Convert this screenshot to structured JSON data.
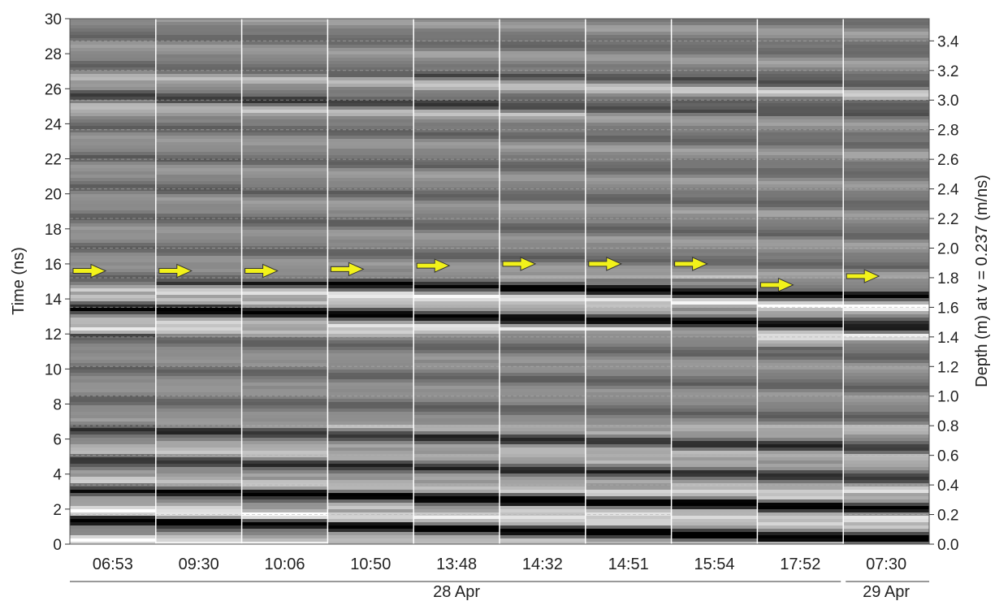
{
  "chart_data": {
    "type": "heatmap",
    "subtype": "GPR radargram time-lapse panels (grayscale amplitude)",
    "ylabel_left": "Time (ns)",
    "ylabel_right": "Depth (m) at v = 0.237 (m/ns)",
    "ylim_time_ns": [
      0,
      30
    ],
    "ylim_depth_m": [
      0.0,
      3.55
    ],
    "y_ticks_left": [
      "0",
      "2",
      "4",
      "6",
      "8",
      "10",
      "12",
      "14",
      "16",
      "18",
      "20",
      "22",
      "24",
      "26",
      "28",
      "30"
    ],
    "y_ticks_right": [
      "0.0",
      "0.2",
      "0.4",
      "0.6",
      "0.8",
      "1.0",
      "1.2",
      "1.4",
      "1.6",
      "1.8",
      "2.0",
      "2.2",
      "2.4",
      "2.6",
      "2.8",
      "3.0",
      "3.2",
      "3.4"
    ],
    "depth_gridlines_m": [
      0.0,
      0.2,
      0.4,
      0.6,
      0.8,
      1.0,
      1.2,
      1.4,
      1.6,
      1.8,
      2.0,
      2.2,
      2.4,
      2.6,
      2.8,
      3.0,
      3.2,
      3.4
    ],
    "panels": [
      {
        "time": "06:53",
        "marker_ns": 15.6
      },
      {
        "time": "09:30",
        "marker_ns": 15.6
      },
      {
        "time": "10:06",
        "marker_ns": 15.6
      },
      {
        "time": "10:50",
        "marker_ns": 15.7
      },
      {
        "time": "13:48",
        "marker_ns": 15.9
      },
      {
        "time": "14:32",
        "marker_ns": 16.0
      },
      {
        "time": "14:51",
        "marker_ns": 16.0
      },
      {
        "time": "15:54",
        "marker_ns": 16.0
      },
      {
        "time": "17:52",
        "marker_ns": 14.8
      },
      {
        "time": "07:30",
        "marker_ns": 15.3
      }
    ],
    "date_groups": [
      {
        "label": "28 Apr",
        "first_panel": 0,
        "last_panel": 8
      },
      {
        "label": "29 Apr",
        "first_panel": 9,
        "last_panel": 9
      }
    ],
    "grid": true,
    "marker_color": "#f2f21a"
  }
}
